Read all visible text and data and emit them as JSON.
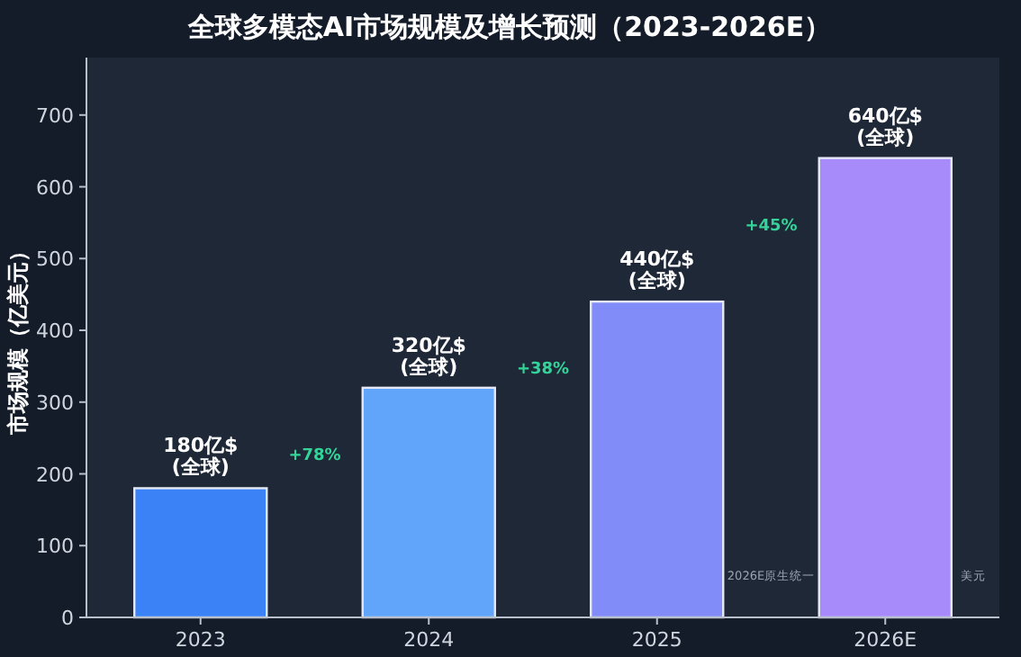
{
  "chart_data": {
    "type": "bar",
    "title": "全球多模态AI市场规模及增长预测（2023-2026E）",
    "ylabel": "市场规模（亿美元）",
    "categories": [
      "2023",
      "2024",
      "2025",
      "2026E"
    ],
    "values": [
      180,
      320,
      440,
      640
    ],
    "colors": [
      "#3b82f6",
      "#60a5fa",
      "#818cf8",
      "#a78bfa"
    ],
    "value_labels": [
      "180亿$\n(全球)",
      "320亿$\n(全球)",
      "440亿$\n(全球)",
      "640亿$\n(全球)"
    ],
    "annotations": [
      "+78%",
      "+38%",
      "+45%",
      "2026E原生统一",
      "美元"
    ],
    "ylim": [
      0,
      780
    ],
    "yticks": [
      0,
      100,
      200,
      300,
      400,
      500,
      600,
      700
    ],
    "grid": false
  }
}
